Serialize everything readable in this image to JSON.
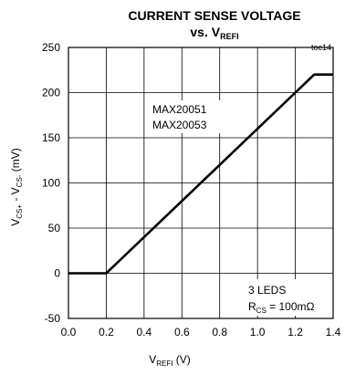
{
  "chart_data": {
    "type": "line",
    "title_line1": "CURRENT SENSE VOLTAGE",
    "title_line2_prefix": "vs. V",
    "title_line2_sub": "REFI",
    "tag": "toc14",
    "xlabel_main": "V",
    "xlabel_sub": "REFI",
    "xlabel_unit": " (V)",
    "ylabel_parts": [
      "V",
      "CS+",
      " - V",
      "CS-",
      " (mV)"
    ],
    "xlim": [
      0.0,
      1.4
    ],
    "ylim": [
      -50,
      250
    ],
    "x_ticks": [
      0.0,
      0.2,
      0.4,
      0.6,
      0.8,
      1.0,
      1.2,
      1.4
    ],
    "x_tick_labels": [
      "0.0",
      "0.2",
      "0.4",
      "0.6",
      "0.8",
      "1.0",
      "1.2",
      "1.4"
    ],
    "y_ticks": [
      -50,
      0,
      50,
      100,
      150,
      200,
      250
    ],
    "y_tick_labels": [
      "-50",
      "0",
      "50",
      "100",
      "150",
      "200",
      "250"
    ],
    "grid": true,
    "series": [
      {
        "x": [
          0.0,
          0.2,
          1.3,
          1.32,
          1.4
        ],
        "y": [
          0,
          0,
          220,
          220,
          220
        ]
      }
    ],
    "annotations": {
      "part_line1": "MAX20051",
      "part_line2": "MAX20053",
      "cond_line1": "3 LEDS",
      "cond_line2_main": "R",
      "cond_line2_sub": "CS",
      "cond_line2_rest": " = 100mΩ"
    }
  }
}
